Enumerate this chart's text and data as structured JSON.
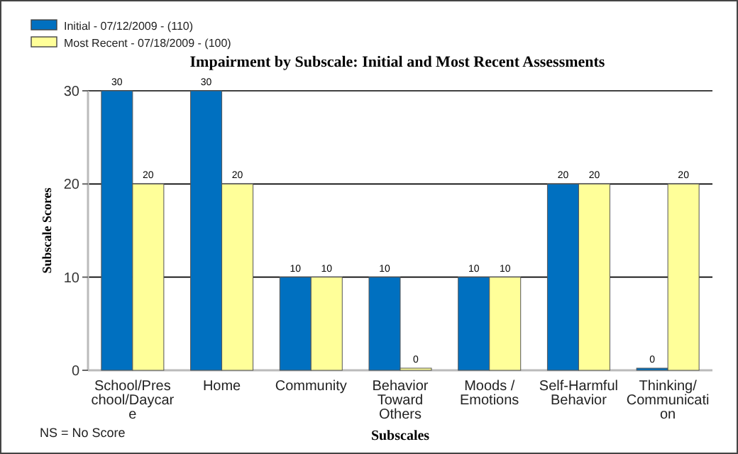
{
  "chart_data": {
    "type": "bar",
    "title": "Impairment  by Subscale: Initial and Most Recent Assessments",
    "xlabel": "Subscales",
    "ylabel": "Subscale Scores",
    "categories": [
      "School/Preschool/Daycare",
      "Home",
      "Community",
      "Behavior Toward Others",
      "Moods / Emotions",
      "Self-Harmful Behavior",
      "Thinking/ Communication"
    ],
    "series": [
      {
        "name": "Initial - 07/12/2009 - (110)",
        "color": "#0070c0",
        "values": [
          30,
          30,
          10,
          10,
          10,
          20,
          0
        ]
      },
      {
        "name": "Most Recent - 07/18/2009 - (100)",
        "color": "#ffff99",
        "values": [
          20,
          20,
          10,
          0,
          10,
          20,
          20
        ]
      }
    ],
    "ylim": [
      0,
      30
    ],
    "yticks": [
      0,
      10,
      20,
      30
    ],
    "grid": "y",
    "legend": "top left",
    "data_labels": true,
    "annotations": [
      "NS = No Score"
    ]
  }
}
